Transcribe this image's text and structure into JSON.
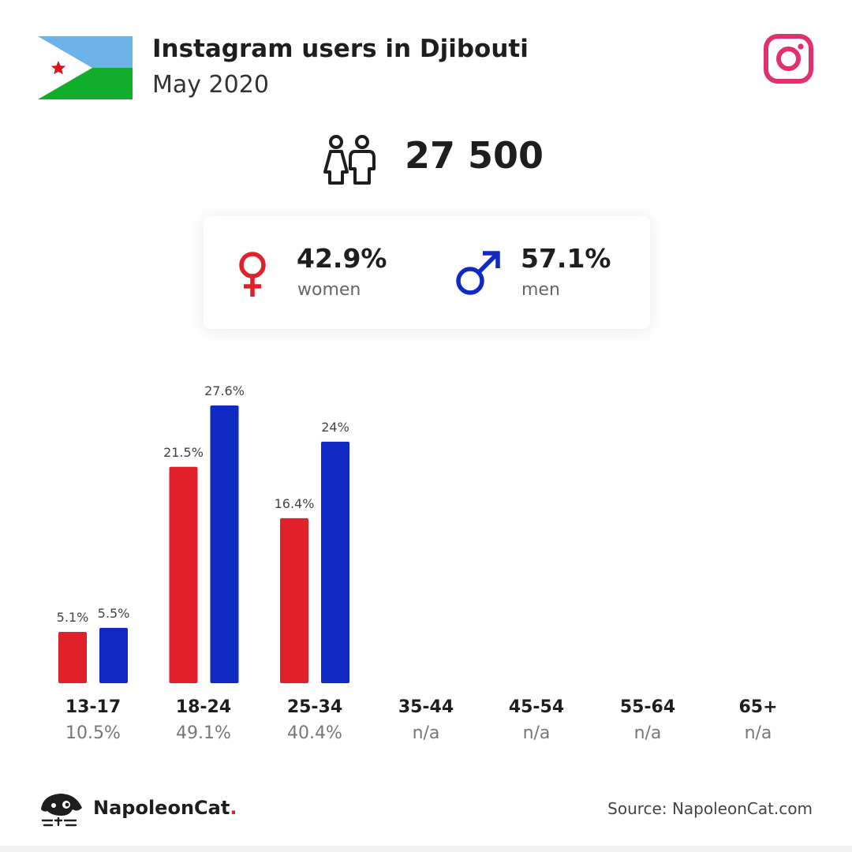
{
  "header": {
    "title": "Instagram users in Djibouti",
    "subtitle": "May 2020",
    "flag_icon": "djibouti-flag-icon",
    "platform_icon": "instagram-icon"
  },
  "summary": {
    "total": "27 500",
    "icon": "users-icon"
  },
  "gender": {
    "women": {
      "percent": "42.9%",
      "label": "women",
      "icon": "female-symbol-icon",
      "color": "#e0212a"
    },
    "men": {
      "percent": "57.1%",
      "label": "men",
      "icon": "male-symbol-icon",
      "color": "#0f29c2"
    }
  },
  "chart_data": {
    "type": "bar",
    "categories": [
      "13-17",
      "18-24",
      "25-34",
      "35-44",
      "45-54",
      "55-64",
      "65+"
    ],
    "series": [
      {
        "name": "women",
        "color": "#e0212a",
        "values": [
          5.1,
          21.5,
          16.4,
          null,
          null,
          null,
          null
        ],
        "labels": [
          "5.1%",
          "21.5%",
          "16.4%",
          "",
          "",
          "",
          ""
        ]
      },
      {
        "name": "men",
        "color": "#0f29c2",
        "values": [
          5.5,
          27.6,
          24,
          null,
          null,
          null,
          null
        ],
        "labels": [
          "5.5%",
          "27.6%",
          "24%",
          "",
          "",
          "",
          ""
        ]
      }
    ],
    "category_totals": [
      "10.5%",
      "49.1%",
      "40.4%",
      "n/a",
      "n/a",
      "n/a",
      "n/a"
    ],
    "ylim": [
      0,
      27.6
    ],
    "grid": false
  },
  "footer": {
    "brand": "NapoleonCat",
    "brand_dot": ".",
    "source": "Source: NapoleonCat.com",
    "logo_icon": "napoleoncat-logo-icon"
  }
}
